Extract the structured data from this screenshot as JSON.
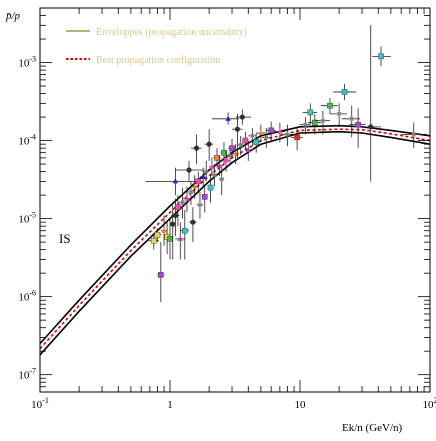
{
  "chart_data": {
    "type": "line",
    "title": "",
    "ylabel": "p̄/p",
    "xlabel": "Ek/n (GeV/n)",
    "x_scale": "log",
    "y_scale": "log",
    "xlim": [
      0.1,
      100
    ],
    "ylim": [
      6e-08,
      0.005
    ],
    "grid": false,
    "legend_position": "top-left",
    "x_ticks": [
      {
        "value": 0.1,
        "base": "10",
        "exp": "-1"
      },
      {
        "value": 1,
        "base": "1",
        "exp": ""
      },
      {
        "value": 10,
        "base": "10",
        "exp": ""
      },
      {
        "value": 100,
        "base": "10",
        "exp": "2"
      }
    ],
    "y_ticks": [
      {
        "value": 1e-07,
        "base": "10",
        "exp": "-7"
      },
      {
        "value": 1e-06,
        "base": "10",
        "exp": "-6"
      },
      {
        "value": 1e-05,
        "base": "10",
        "exp": "-5"
      },
      {
        "value": 0.0001,
        "base": "10",
        "exp": "-4"
      },
      {
        "value": 0.001,
        "base": "10",
        "exp": "-3"
      }
    ],
    "annotation": "IS",
    "legend": [
      {
        "label": "Enveloppes (propagation uncertainty)",
        "color": "#9a9a4a",
        "style": "solid"
      },
      {
        "label": "Best propagation configuration",
        "color": "#e00000",
        "style": "dotted"
      }
    ],
    "series": [
      {
        "name": "Enveloppes (propagation uncertainty)",
        "role": "upper",
        "color": "#000000",
        "points": [
          [
            0.1,
            2.5e-07
          ],
          [
            0.2,
            9e-07
          ],
          [
            0.5,
            4.6e-06
          ],
          [
            1,
            1.45e-05
          ],
          [
            2,
            4.2e-05
          ],
          [
            3,
            7e-05
          ],
          [
            5,
            0.000115
          ],
          [
            10,
            0.00015
          ],
          [
            20,
            0.000155
          ],
          [
            30,
            0.00015
          ],
          [
            50,
            0.000135
          ],
          [
            100,
            0.000115
          ]
        ]
      },
      {
        "name": "Enveloppes (propagation uncertainty)",
        "role": "lower",
        "color": "#000000",
        "points": [
          [
            0.1,
            1.8e-07
          ],
          [
            0.2,
            6.5e-07
          ],
          [
            0.5,
            3.3e-06
          ],
          [
            1,
            1e-05
          ],
          [
            2,
            3e-05
          ],
          [
            3,
            5.2e-05
          ],
          [
            5,
            9e-05
          ],
          [
            10,
            0.000125
          ],
          [
            20,
            0.00013
          ],
          [
            30,
            0.000125
          ],
          [
            50,
            0.00011
          ],
          [
            100,
            9e-05
          ]
        ]
      },
      {
        "name": "Best propagation configuration",
        "role": "best",
        "color": "#e00000",
        "points": [
          [
            0.1,
            2.15e-07
          ],
          [
            0.2,
            7.7e-07
          ],
          [
            0.5,
            3.9e-06
          ],
          [
            1,
            1.2e-05
          ],
          [
            2,
            3.55e-05
          ],
          [
            3,
            6e-05
          ],
          [
            5,
            0.0001
          ],
          [
            10,
            0.000135
          ],
          [
            20,
            0.00014
          ],
          [
            30,
            0.000138
          ],
          [
            50,
            0.000122
          ],
          [
            100,
            0.0001
          ]
        ]
      }
    ],
    "data_points": [
      {
        "x": 0.75,
        "y": 5.2e-06,
        "xerr": [
          0.68,
          0.82
        ],
        "yerr": [
          4e-06,
          6.5e-06
        ],
        "color": "#e8d838",
        "marker": "square"
      },
      {
        "x": 0.8,
        "y": 6.2e-06,
        "xerr": [
          0.75,
          0.86
        ],
        "yerr": [
          5e-06,
          7.5e-06
        ],
        "color": "#e8d838",
        "marker": "square"
      },
      {
        "x": 0.85,
        "y": 1.9e-06,
        "xerr": [
          0.8,
          0.9
        ],
        "yerr": [
          8.5e-07,
          5e-06
        ],
        "color": "#b040e0",
        "marker": "square"
      },
      {
        "x": 0.9,
        "y": 7e-06,
        "xerr": [
          0.85,
          0.95
        ],
        "yerr": [
          4.5e-06,
          1.1e-05
        ],
        "color": "#ff8020",
        "marker": "triangle"
      },
      {
        "x": 0.95,
        "y": 5.8e-06,
        "xerr": [
          0.9,
          1.0
        ],
        "yerr": [
          3.5e-06,
          9e-06
        ],
        "color": "#e8d838",
        "marker": "square"
      },
      {
        "x": 1.0,
        "y": 5.5e-06,
        "xerr": [
          0.95,
          1.05
        ],
        "yerr": [
          3e-06,
          1e-05
        ],
        "color": "#40c040",
        "marker": "square"
      },
      {
        "x": 1.05,
        "y": 8.5e-06,
        "xerr": [
          1.0,
          1.1
        ],
        "yerr": [
          3e-06,
          1.5e-05
        ],
        "color": "#303030",
        "marker": "circle"
      },
      {
        "x": 1.1,
        "y": 3e-05,
        "xerr": [
          0.65,
          1.6
        ],
        "yerr": [
          2e-05,
          4.5e-05
        ],
        "color": "#2020e0",
        "marker": "triangle"
      },
      {
        "x": 1.1,
        "y": 1.1e-05,
        "xerr": [
          1.02,
          1.18
        ],
        "yerr": [
          6e-06,
          1.8e-05
        ],
        "color": "#303030",
        "marker": "circle"
      },
      {
        "x": 1.15,
        "y": 1.4e-05,
        "xerr": [
          1.08,
          1.22
        ],
        "yerr": [
          8e-06,
          2e-05
        ],
        "color": "#ff40c0",
        "marker": "square"
      },
      {
        "x": 1.2,
        "y": 5.5e-06,
        "xerr": [
          1.1,
          1.3
        ],
        "yerr": [
          3e-06,
          9e-06
        ],
        "color": "#b040e0",
        "marker": "triangle"
      },
      {
        "x": 1.25,
        "y": 1.6e-05,
        "xerr": [
          1.15,
          1.35
        ],
        "yerr": [
          1e-05,
          2.5e-05
        ],
        "color": "#808080",
        "marker": "star"
      },
      {
        "x": 1.3,
        "y": 7e-06,
        "xerr": [
          1.2,
          1.4
        ],
        "yerr": [
          3e-06,
          1.3e-05
        ],
        "color": "#40c0c0",
        "marker": "square"
      },
      {
        "x": 1.35,
        "y": 1.8e-05,
        "xerr": [
          1.25,
          1.45
        ],
        "yerr": [
          1.2e-05,
          2.6e-05
        ],
        "color": "#ff40c0",
        "marker": "triangle"
      },
      {
        "x": 1.4,
        "y": 4.2e-05,
        "xerr": [
          1.1,
          1.8
        ],
        "yerr": [
          3e-05,
          5.5e-05
        ],
        "color": "#303030",
        "marker": "circle"
      },
      {
        "x": 1.45,
        "y": 2.2e-05,
        "xerr": [
          1.35,
          1.55
        ],
        "yerr": [
          1.5e-05,
          3e-05
        ],
        "color": "#808080",
        "marker": "star"
      },
      {
        "x": 1.5,
        "y": 9e-06,
        "xerr": [
          1.4,
          1.6
        ],
        "yerr": [
          5e-06,
          1.4e-05
        ],
        "color": "#303030",
        "marker": "circle"
      },
      {
        "x": 1.55,
        "y": 2.6e-05,
        "xerr": [
          1.45,
          1.65
        ],
        "yerr": [
          1.8e-05,
          3.6e-05
        ],
        "color": "#ff8020",
        "marker": "triangle"
      },
      {
        "x": 1.6,
        "y": 8e-05,
        "xerr": [
          1.45,
          1.75
        ],
        "yerr": [
          5e-05,
          0.00012
        ],
        "color": "#303030",
        "marker": "circle"
      },
      {
        "x": 1.65,
        "y": 3e-05,
        "xerr": [
          1.55,
          1.75
        ],
        "yerr": [
          2.1e-05,
          4e-05
        ],
        "color": "#ff40c0",
        "marker": "square"
      },
      {
        "x": 1.7,
        "y": 1.5e-05,
        "xerr": [
          1.6,
          1.8
        ],
        "yerr": [
          1e-05,
          2.2e-05
        ],
        "color": "#808080",
        "marker": "star"
      },
      {
        "x": 1.8,
        "y": 3.4e-05,
        "xerr": [
          1.7,
          1.9
        ],
        "yerr": [
          2.5e-05,
          4.5e-05
        ],
        "color": "#2020e0",
        "marker": "triangle"
      },
      {
        "x": 1.85,
        "y": 1.9e-05,
        "xerr": [
          1.75,
          1.95
        ],
        "yerr": [
          1.2e-05,
          2.6e-05
        ],
        "color": "#b040e0",
        "marker": "square"
      },
      {
        "x": 1.9,
        "y": 4e-05,
        "xerr": [
          1.8,
          2.0
        ],
        "yerr": [
          3e-05,
          5.5e-05
        ],
        "color": "#808080",
        "marker": "star"
      },
      {
        "x": 2.0,
        "y": 9e-05,
        "xerr": [
          1.85,
          2.15
        ],
        "yerr": [
          5.5e-05,
          0.00014
        ],
        "color": "#303030",
        "marker": "circle"
      },
      {
        "x": 2.05,
        "y": 2.5e-05,
        "xerr": [
          1.95,
          2.15
        ],
        "yerr": [
          1.6e-05,
          3.6e-05
        ],
        "color": "#40c0c0",
        "marker": "square"
      },
      {
        "x": 2.1,
        "y": 4.6e-05,
        "xerr": [
          2.0,
          2.2
        ],
        "yerr": [
          3.5e-05,
          6e-05
        ],
        "color": "#ff40c0",
        "marker": "triangle"
      },
      {
        "x": 2.2,
        "y": 3.6e-05,
        "xerr": [
          2.1,
          2.3
        ],
        "yerr": [
          2.6e-05,
          5e-05
        ],
        "color": "#808080",
        "marker": "star"
      },
      {
        "x": 2.3,
        "y": 6e-05,
        "xerr": [
          2.15,
          2.45
        ],
        "yerr": [
          4.5e-05,
          8e-05
        ],
        "color": "#ff8020",
        "marker": "square"
      },
      {
        "x": 2.4,
        "y": 4.8e-05,
        "xerr": [
          2.3,
          2.5
        ],
        "yerr": [
          3.5e-05,
          6.5e-05
        ],
        "color": "#b040e0",
        "marker": "triangle"
      },
      {
        "x": 2.5,
        "y": 3.2e-05,
        "xerr": [
          2.4,
          2.6
        ],
        "yerr": [
          2e-05,
          4.6e-05
        ],
        "color": "#808080",
        "marker": "star"
      },
      {
        "x": 2.6,
        "y": 7e-05,
        "xerr": [
          2.45,
          2.75
        ],
        "yerr": [
          5e-05,
          9.5e-05
        ],
        "color": "#40c040",
        "marker": "square"
      },
      {
        "x": 2.7,
        "y": 5.6e-05,
        "xerr": [
          2.55,
          2.85
        ],
        "yerr": [
          4e-05,
          7.5e-05
        ],
        "color": "#ff40c0",
        "marker": "circle"
      },
      {
        "x": 2.8,
        "y": 0.00019,
        "xerr": [
          2.1,
          3.4
        ],
        "yerr": [
          0.00016,
          0.00023
        ],
        "color": "#2020e0",
        "marker": "triangle"
      },
      {
        "x": 2.9,
        "y": 6.4e-05,
        "xerr": [
          2.75,
          3.05
        ],
        "yerr": [
          4.8e-05,
          8.5e-05
        ],
        "color": "#808080",
        "marker": "star"
      },
      {
        "x": 3.0,
        "y": 8e-05,
        "xerr": [
          2.8,
          3.2
        ],
        "yerr": [
          6e-05,
          0.000105
        ],
        "color": "#b040e0",
        "marker": "square"
      },
      {
        "x": 3.2,
        "y": 6.8e-05,
        "xerr": [
          3.0,
          3.4
        ],
        "yerr": [
          5e-05,
          9e-05
        ],
        "color": "#ff8020",
        "marker": "triangle"
      },
      {
        "x": 3.3,
        "y": 0.00014,
        "xerr": [
          3.0,
          3.6
        ],
        "yerr": [
          6e-05,
          0.00022
        ],
        "color": "#303030",
        "marker": "circle"
      },
      {
        "x": 3.5,
        "y": 8.8e-05,
        "xerr": [
          3.3,
          3.7
        ],
        "yerr": [
          6.5e-05,
          0.000115
        ],
        "color": "#808080",
        "marker": "star"
      },
      {
        "x": 3.6,
        "y": 0.0002,
        "xerr": [
          3.2,
          4.2
        ],
        "yerr": [
          0.00016,
          0.00025
        ],
        "color": "#303030",
        "marker": "circle"
      },
      {
        "x": 3.8,
        "y": 0.0001,
        "xerr": [
          3.6,
          4.0
        ],
        "yerr": [
          7.5e-05,
          0.00013
        ],
        "color": "#ff40c0",
        "marker": "square"
      },
      {
        "x": 4.0,
        "y": 7.6e-05,
        "xerr": [
          3.8,
          4.2
        ],
        "yerr": [
          5.5e-05,
          0.0001
        ],
        "color": "#b040e0",
        "marker": "triangle"
      },
      {
        "x": 4.3,
        "y": 0.000115,
        "xerr": [
          4.0,
          4.6
        ],
        "yerr": [
          8.5e-05,
          0.000145
        ],
        "color": "#808080",
        "marker": "star"
      },
      {
        "x": 4.6,
        "y": 9.6e-05,
        "xerr": [
          4.3,
          4.9
        ],
        "yerr": [
          7e-05,
          0.000125
        ],
        "color": "#40c0c0",
        "marker": "square"
      },
      {
        "x": 5.0,
        "y": 0.000125,
        "xerr": [
          4.6,
          5.4
        ],
        "yerr": [
          9.5e-05,
          0.00016
        ],
        "color": "#ff8020",
        "marker": "triangle"
      },
      {
        "x": 5.5,
        "y": 0.00011,
        "xerr": [
          5.1,
          5.9
        ],
        "yerr": [
          8e-05,
          0.000145
        ],
        "color": "#808080",
        "marker": "star"
      },
      {
        "x": 6.0,
        "y": 0.000135,
        "xerr": [
          5.5,
          6.5
        ],
        "yerr": [
          0.0001,
          0.000175
        ],
        "color": "#b040e0",
        "marker": "square"
      },
      {
        "x": 7.0,
        "y": 0.00013,
        "xerr": [
          6.3,
          7.7
        ],
        "yerr": [
          9.5e-05,
          0.00017
        ],
        "color": "#ff40c0",
        "marker": "triangle"
      },
      {
        "x": 8.0,
        "y": 0.00012,
        "xerr": [
          7.2,
          8.8
        ],
        "yerr": [
          8.5e-05,
          0.00016
        ],
        "color": "#808080",
        "marker": "star"
      },
      {
        "x": 9.5,
        "y": 0.00011,
        "xerr": [
          8.5,
          10.5
        ],
        "yerr": [
          7.5e-05,
          0.00015
        ],
        "color": "#ff2020",
        "marker": "square"
      },
      {
        "x": 11.0,
        "y": 0.00016,
        "xerr": [
          10.0,
          12.0
        ],
        "yerr": [
          0.00012,
          0.0002
        ],
        "color": "#808080",
        "marker": "star"
      },
      {
        "x": 12.0,
        "y": 0.00023,
        "xerr": [
          10.5,
          13.5
        ],
        "yerr": [
          0.00016,
          0.0003
        ],
        "color": "#40c0c0",
        "marker": "square"
      },
      {
        "x": 13.0,
        "y": 0.00017,
        "xerr": [
          11.5,
          14.5
        ],
        "yerr": [
          0.00012,
          0.00022
        ],
        "color": "#40c040",
        "marker": "square"
      },
      {
        "x": 15.0,
        "y": 0.00018,
        "xerr": [
          13.0,
          17.0
        ],
        "yerr": [
          0.00012,
          0.00024
        ],
        "color": "#808080",
        "marker": "star"
      },
      {
        "x": 17.0,
        "y": 0.00028,
        "xerr": [
          14.5,
          19.5
        ],
        "yerr": [
          0.00022,
          0.00035
        ],
        "color": "#40c040",
        "marker": "square"
      },
      {
        "x": 20.0,
        "y": 0.00022,
        "xerr": [
          17.0,
          23.0
        ],
        "yerr": [
          0.00015,
          0.0003
        ],
        "color": "#808080",
        "marker": "star"
      },
      {
        "x": 22.0,
        "y": 0.00042,
        "xerr": [
          18.0,
          27.0
        ],
        "yerr": [
          0.00033,
          0.00053
        ],
        "color": "#40c0c0",
        "marker": "square"
      },
      {
        "x": 25.0,
        "y": 0.00019,
        "xerr": [
          21.0,
          29.0
        ],
        "yerr": [
          0.00011,
          0.00028
        ],
        "color": "#808080",
        "marker": "star"
      },
      {
        "x": 28.0,
        "y": 0.00016,
        "xerr": [
          24.0,
          32.0
        ],
        "yerr": [
          8e-05,
          0.00026
        ],
        "color": "#b040e0",
        "marker": "square"
      },
      {
        "x": 35.0,
        "y": 0.00015,
        "xerr": [
          30.0,
          42.0
        ],
        "yerr": [
          3e-05,
          0.003
        ],
        "color": "#303030",
        "marker": "circle"
      },
      {
        "x": 42.0,
        "y": 0.0012,
        "xerr": [
          36.0,
          50.0
        ],
        "yerr": [
          0.0009,
          0.0016
        ],
        "color": "#40c0c0",
        "marker": "square"
      },
      {
        "x": 75.0,
        "y": 0.00012,
        "xerr": [
          60.0,
          95.0
        ],
        "yerr": [
          8e-05,
          0.00017
        ],
        "color": "#808080",
        "marker": "star"
      }
    ]
  }
}
